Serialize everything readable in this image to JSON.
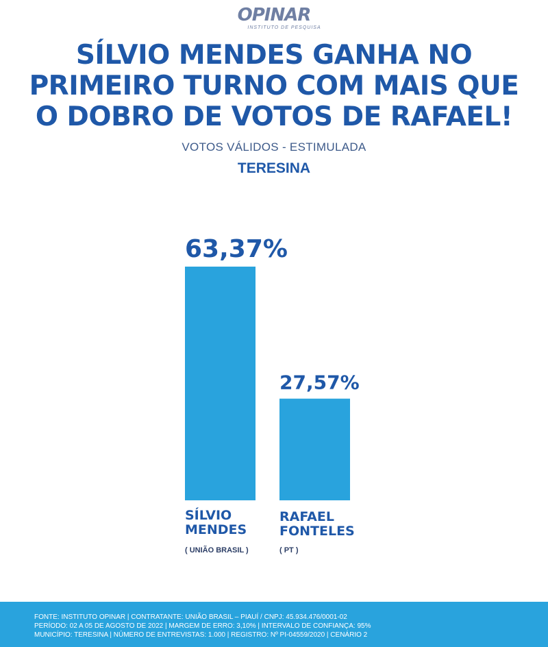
{
  "logo": {
    "word": "OPINAR",
    "tagline": "INSTITUTO DE PESQUISA"
  },
  "headline": "SÍLVIO MENDES GANHA NO PRIMEIRO TURNO COM MAIS QUE O DOBRO DE VOTOS DE RAFAEL!",
  "subtitle": "VOTOS VÁLIDOS - ESTIMULADA",
  "city": "TERESINA",
  "candidates": [
    {
      "name": "SÍLVIO\nMENDES",
      "party": "( UNIÃO BRASIL )"
    },
    {
      "name": "RAFAEL\nFONTELES",
      "party": "( PT )"
    }
  ],
  "chart_data": {
    "type": "bar",
    "categories": [
      "SÍLVIO MENDES",
      "RAFAEL FONTELES"
    ],
    "values": [
      63.37,
      27.57
    ],
    "value_labels": [
      "63,37%",
      "27,57%"
    ],
    "bar_color": "#29a3dd",
    "label_color": "#1f58a8",
    "ylim": [
      0,
      63.37
    ],
    "grid": false,
    "legend": "none"
  },
  "footer": {
    "line1": "FONTE: INSTITUTO OPINAR | CONTRATANTE: UNIÃO BRASIL – PIAUÍ / CNPJ: 45.934.476/0001-02",
    "line2": "PERÍODO:  02 A 05 DE AGOSTO DE 2022  | MARGEM DE ERRO:  3,10%  | INTERVALO DE CONFIANÇA: 95%",
    "line3": "MUNICÍPIO: TERESINA  | NÚMERO DE ENTREVISTAS: 1.000  | REGISTRO:  Nº PI-04559/2020  | CENÁRIO 2"
  }
}
